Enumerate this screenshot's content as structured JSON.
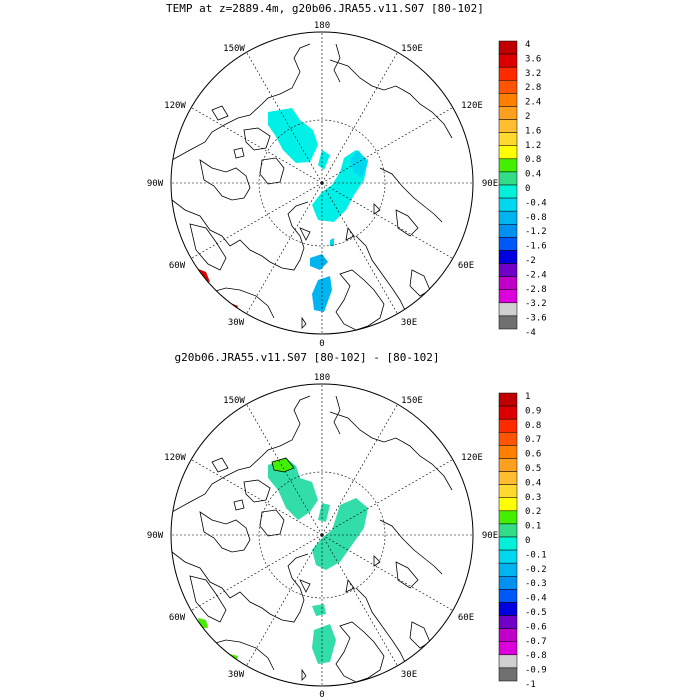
{
  "panels": [
    {
      "title": "TEMP at z=2889.4m, g20b06.JRA55.v11.S07 [80-102]",
      "lon_labels": {
        "top": "180",
        "left_top": "150W",
        "left_mid_top": "120W",
        "left": "90W",
        "left_mid_bot": "60W",
        "left_bot": "30W",
        "bottom": "0",
        "right_bot": "30E",
        "right_mid_bot": "60E",
        "right": "90E",
        "right_mid_top": "120E",
        "right_top": "150E"
      },
      "colorbar": {
        "labels": [
          "4",
          "3.6",
          "3.2",
          "2.8",
          "2.4",
          "2",
          "1.6",
          "1.2",
          "0.8",
          "0.4",
          "0",
          "-0.4",
          "-0.8",
          "-1.2",
          "-1.6",
          "-2",
          "-2.4",
          "-2.8",
          "-3.2",
          "-3.6",
          "-4"
        ],
        "colors": [
          "#c00000",
          "#dd0000",
          "#ff2a00",
          "#ff5500",
          "#ff8000",
          "#ffa020",
          "#ffbe30",
          "#ffd830",
          "#ffff00",
          "#44ee00",
          "#33dd88",
          "#00f0d8",
          "#00d8f0",
          "#00b4f0",
          "#0090f0",
          "#0058f8",
          "#0000e0",
          "#7000c8",
          "#c000c8",
          "#dd00dd",
          "#d0d0d0",
          "#707070"
        ]
      }
    },
    {
      "title": "g20b06.JRA55.v11.S07 [80-102] -  [80-102]",
      "lon_labels": {
        "top": "180",
        "left_top": "150W",
        "left_mid_top": "120W",
        "left": "90W",
        "left_mid_bot": "60W",
        "left_bot": "30W",
        "bottom": "0",
        "right_bot": "30E",
        "right_mid_bot": "60E",
        "right": "90E",
        "right_mid_top": "120E",
        "right_top": "150E"
      },
      "colorbar": {
        "labels": [
          "1",
          "0.9",
          "0.8",
          "0.7",
          "0.6",
          "0.5",
          "0.4",
          "0.3",
          "0.2",
          "0.1",
          "0",
          "-0.1",
          "-0.2",
          "-0.3",
          "-0.4",
          "-0.5",
          "-0.6",
          "-0.7",
          "-0.8",
          "-0.9",
          "-1"
        ],
        "colors": [
          "#c00000",
          "#dd0000",
          "#ff2a00",
          "#ff5500",
          "#ff8000",
          "#ffa020",
          "#ffbe30",
          "#ffd830",
          "#ffff00",
          "#44ee00",
          "#33dd88",
          "#00f0d8",
          "#00d8f0",
          "#00b4f0",
          "#0090f0",
          "#0058f8",
          "#0000e0",
          "#7000c8",
          "#c000c8",
          "#dd00dd",
          "#d0d0d0",
          "#707070"
        ]
      }
    }
  ]
}
